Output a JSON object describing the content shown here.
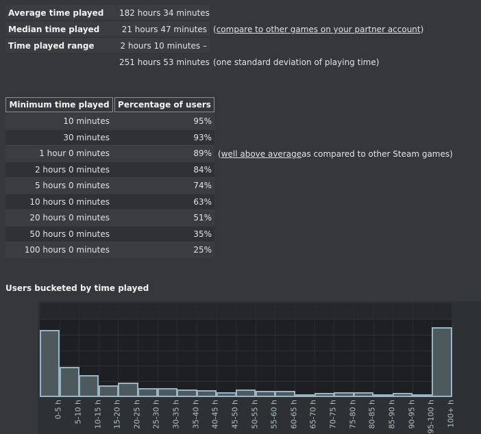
{
  "summary": {
    "average_label": "Average time played",
    "average_value": "182 hours 34 minutes",
    "median_label": "Median time played",
    "median_value": "21 hours 47 minutes",
    "median_note_open": "(",
    "median_note_link": "compare to other games on your partner account",
    "median_note_close": ")",
    "range_label": "Time played range",
    "range_value_start": "2 hours 10 minutes –",
    "range_value_end": "251 hours 53 minutes",
    "range_note": "(one standard deviation of playing time)"
  },
  "percent_table": {
    "headers": [
      "Minimum time played",
      "Percentage of users"
    ],
    "rows": [
      {
        "time": "10 minutes",
        "pct": "95%"
      },
      {
        "time": "30 minutes",
        "pct": "93%"
      },
      {
        "time": "1 hour 0 minutes",
        "pct": "89%",
        "note_open": "(",
        "note_link": "well above average",
        "note_rest": " as compared to other Steam games)"
      },
      {
        "time": "2 hours 0 minutes",
        "pct": "84%"
      },
      {
        "time": "5 hours 0 minutes",
        "pct": "74%"
      },
      {
        "time": "10 hours 0 minutes",
        "pct": "63%"
      },
      {
        "time": "20 hours 0 minutes",
        "pct": "51%"
      },
      {
        "time": "50 hours 0 minutes",
        "pct": "35%"
      },
      {
        "time": "100 hours 0 minutes",
        "pct": "25%"
      }
    ]
  },
  "chart_data": {
    "type": "bar",
    "title": "Users bucketed by time played",
    "categories": [
      "0-5 h",
      "5-10 h",
      "10-15 h",
      "15-20 h",
      "20-25 h",
      "25-30 h",
      "30-35 h",
      "35-40 h",
      "40-45 h",
      "45-50 h",
      "50-55 h",
      "55-60 h",
      "60-65 h",
      "65-70 h",
      "70-75 h",
      "75-80 h",
      "80-85 h",
      "85-90 h",
      "90-95 h",
      "95-100 h",
      "100+ h"
    ],
    "values": [
      23.8,
      10.8,
      7.9,
      4.2,
      5.2,
      3.2,
      3.2,
      2.7,
      2.5,
      1.7,
      2.7,
      2.2,
      2.2,
      0.9,
      1.5,
      1.7,
      1.7,
      0.7,
      1.5,
      0.7,
      25.0
    ],
    "unit": "% of users (estimated, no y-axis labels shown)",
    "xlabel": "",
    "ylabel": "",
    "ylim": [
      0,
      33.4
    ],
    "grid": true,
    "legend": null
  },
  "colors": {
    "page_background": "#35373a",
    "panel_background": "#2e3134",
    "plot_background": "#1e1f22",
    "bar_fill": "#4d595d",
    "bar_border": "#a3c3d3",
    "axis_label": "#aec0c7",
    "text": "#e2e3e4"
  }
}
